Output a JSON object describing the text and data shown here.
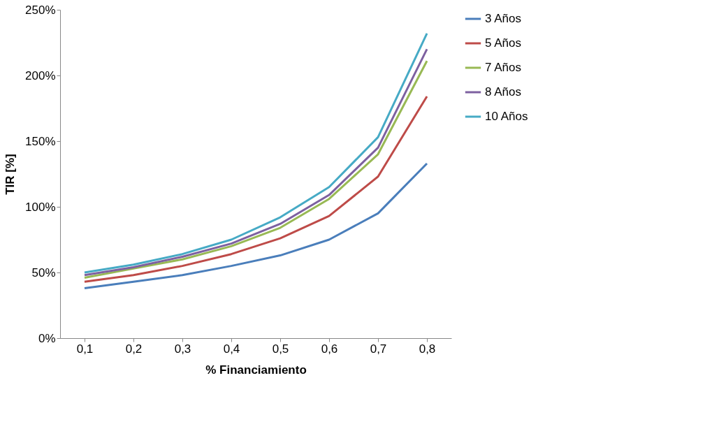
{
  "chart_data": {
    "type": "line",
    "xlabel": "% Financiamiento",
    "ylabel": "TIR [%]",
    "categories": [
      "0,1",
      "0,2",
      "0,3",
      "0,4",
      "0,5",
      "0,6",
      "0,7",
      "0,8"
    ],
    "series": [
      {
        "name": "3 Años",
        "color": "#4a7ebb",
        "values": [
          38,
          43,
          48,
          55,
          63,
          75,
          95,
          133
        ]
      },
      {
        "name": "5 Años",
        "color": "#be4b48",
        "values": [
          43,
          48,
          55,
          64,
          76,
          93,
          123,
          184
        ]
      },
      {
        "name": "7 Años",
        "color": "#98b954",
        "values": [
          46,
          53,
          60,
          70,
          84,
          106,
          140,
          211
        ]
      },
      {
        "name": "8 Años",
        "color": "#7d60a0",
        "values": [
          48,
          54,
          62,
          72,
          87,
          109,
          145,
          220
        ]
      },
      {
        "name": "10 Años",
        "color": "#46aac5",
        "values": [
          50,
          56,
          64,
          75,
          92,
          115,
          153,
          232
        ]
      }
    ],
    "ylim": [
      0,
      250
    ],
    "yticks": [
      {
        "value": 0,
        "label": "0%"
      },
      {
        "value": 50,
        "label": "50%"
      },
      {
        "value": 100,
        "label": "100%"
      },
      {
        "value": 150,
        "label": "150%"
      },
      {
        "value": 200,
        "label": "200%"
      },
      {
        "value": 250,
        "label": "250%"
      }
    ],
    "grid": false,
    "legend": "right",
    "marker": "none",
    "line_style": "solid"
  }
}
